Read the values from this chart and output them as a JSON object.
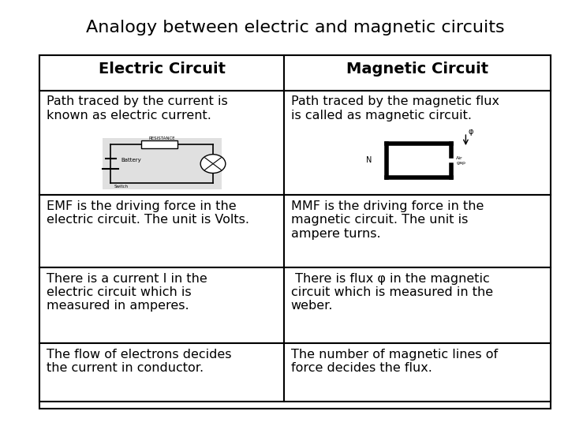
{
  "title": "Analogy between electric and magnetic circuits",
  "title_fontsize": 16,
  "col1_header": "Electric Circuit",
  "col2_header": "Magnetic Circuit",
  "header_fontsize": 14,
  "cell_fontsize": 11.5,
  "rows": [
    {
      "col1": "Path traced by the current is\nknown as electric current.",
      "col2": "Path traced by the magnetic flux\nis called as magnetic circuit.",
      "has_image": true
    },
    {
      "col1": "EMF is the driving force in the\nelectric circuit. The unit is Volts.",
      "col2": "MMF is the driving force in the\nmagnetic circuit. The unit is\nampere turns.",
      "has_image": false
    },
    {
      "col1": "There is a current I in the\nelectric circuit which is\nmeasured in amperes.",
      "col2": " There is flux φ in the magnetic\ncircuit which is measured in the\nweber.",
      "has_image": false
    },
    {
      "col1": "The flow of electrons decides\nthe current in conductor.",
      "col2": "The number of magnetic lines of\nforce decides the flux.",
      "has_image": false
    }
  ],
  "bg_color": "#ffffff",
  "line_color": "#000000",
  "text_color": "#000000"
}
